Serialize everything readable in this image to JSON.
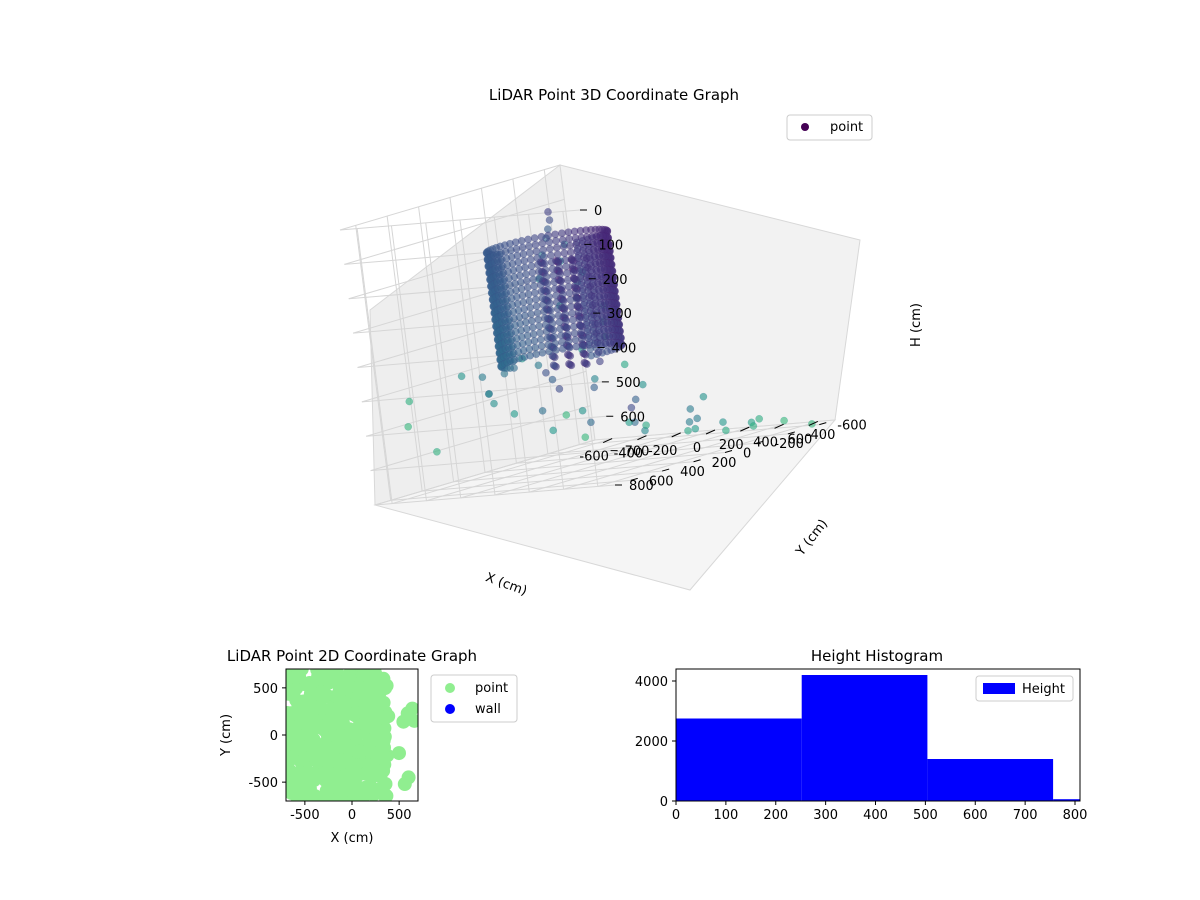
{
  "chart_data": [
    {
      "type": "scatter3d",
      "title": "LiDAR Point 3D Coordinate Graph",
      "xlabel": "X (cm)",
      "ylabel": "Y (cm)",
      "zlabel": "H (cm)",
      "xlim": [
        -700,
        700
      ],
      "ylim": [
        -700,
        700
      ],
      "zlim": [
        0,
        800
      ],
      "z_inverted": true,
      "xticks": [
        -600,
        -400,
        -200,
        0,
        200,
        400,
        600
      ],
      "yticks": [
        -600,
        -400,
        -200,
        0,
        200,
        400,
        600
      ],
      "zticks": [
        0,
        100,
        200,
        300,
        400,
        500,
        600,
        700,
        800
      ],
      "legend": [
        "point"
      ],
      "legend_position": "upper-right",
      "grid": true,
      "colormap": "viridis",
      "series": [
        {
          "name": "point",
          "ring": {
            "radius": 260,
            "z_range": [
              140,
              470
            ],
            "x_center": -60,
            "y_center": 120
          },
          "points": [
            [
              -640,
              -480,
              700
            ],
            [
              -600,
              -120,
              650
            ],
            [
              -560,
              40,
              600
            ],
            [
              -520,
              -260,
              720
            ],
            [
              -470,
              160,
              560
            ],
            [
              -430,
              -360,
              680
            ],
            [
              -400,
              260,
              500
            ],
            [
              -360,
              -40,
              640
            ],
            [
              -320,
              -520,
              740
            ],
            [
              -280,
              360,
              540
            ],
            [
              -240,
              -200,
              700
            ],
            [
              -200,
              80,
              520
            ],
            [
              -160,
              -440,
              760
            ],
            [
              -120,
              420,
              480
            ],
            [
              -80,
              -300,
              720
            ],
            [
              -40,
              180,
              560
            ],
            [
              0,
              -580,
              780
            ],
            [
              40,
              300,
              520
            ],
            [
              80,
              -120,
              660
            ],
            [
              120,
              460,
              460
            ],
            [
              160,
              -380,
              740
            ],
            [
              200,
              220,
              560
            ],
            [
              240,
              -500,
              760
            ],
            [
              280,
              60,
              620
            ],
            [
              320,
              -260,
              720
            ],
            [
              360,
              380,
              520
            ],
            [
              400,
              -140,
              680
            ],
            [
              440,
              520,
              420
            ],
            [
              480,
              -420,
              760
            ],
            [
              520,
              260,
              560
            ],
            [
              560,
              -60,
              640
            ],
            [
              600,
              440,
              480
            ],
            [
              640,
              -300,
              740
            ],
            [
              660,
              600,
              380
            ],
            [
              620,
              560,
              340
            ],
            [
              580,
              500,
              300
            ],
            [
              540,
              620,
              260
            ],
            [
              500,
              560,
              220
            ],
            [
              460,
              480,
              200
            ],
            [
              420,
              600,
              280
            ],
            [
              380,
              520,
              160
            ],
            [
              340,
              440,
              120
            ],
            [
              300,
              580,
              200
            ],
            [
              260,
              500,
              140
            ],
            [
              220,
              420,
              100
            ],
            [
              180,
              360,
              80
            ],
            [
              140,
              300,
              60
            ],
            [
              100,
              260,
              40
            ],
            [
              -660,
              -600,
              780
            ],
            [
              -620,
              520,
              600
            ],
            [
              -300,
              -600,
              760
            ],
            [
              -100,
              -640,
              790
            ],
            [
              100,
              -660,
              800
            ],
            [
              300,
              -620,
              790
            ],
            [
              500,
              -600,
              780
            ],
            [
              620,
              -640,
              800
            ],
            [
              -520,
              600,
              520
            ],
            [
              -200,
              600,
              460
            ],
            [
              200,
              640,
              420
            ],
            [
              -680,
              300,
              700
            ]
          ]
        }
      ]
    },
    {
      "type": "scatter",
      "title": "LiDAR Point 2D Coordinate Graph",
      "xlabel": "X (cm)",
      "ylabel": "Y (cm)",
      "xlim": [
        -700,
        700
      ],
      "ylim": [
        -700,
        700
      ],
      "xticks": [
        -500,
        0,
        500
      ],
      "yticks": [
        -500,
        0,
        500
      ],
      "legend": [
        "point",
        "wall"
      ],
      "legend_position": "outside-right",
      "colors": {
        "point": "#90ee90",
        "wall": "#0000ff"
      }
    },
    {
      "type": "bar",
      "title": "Height Histogram",
      "xlabel": "",
      "ylabel": "",
      "legend": [
        "Height"
      ],
      "legend_position": "upper-right",
      "color": "#0000ff",
      "xlim": [
        0,
        810
      ],
      "ylim": [
        0,
        4400
      ],
      "xticks": [
        0,
        100,
        200,
        300,
        400,
        500,
        600,
        700,
        800
      ],
      "yticks": [
        0,
        2000,
        4000
      ],
      "bins": [
        {
          "from": 0,
          "to": 252,
          "count": 2750
        },
        {
          "from": 252,
          "to": 504,
          "count": 4200
        },
        {
          "from": 504,
          "to": 756,
          "count": 1400
        },
        {
          "from": 756,
          "to": 810,
          "count": 60
        }
      ]
    }
  ]
}
